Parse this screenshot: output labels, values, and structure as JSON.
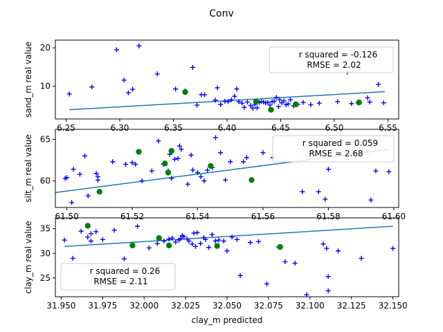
{
  "figure": {
    "title": "Conv"
  },
  "colors": {
    "marker_blue": "#0000ff",
    "marker_green": "#008000",
    "fit_line": "#1f77b4"
  },
  "chart_data": [
    {
      "type": "scatter",
      "ylabel": "sand_m real value",
      "xlabel": "",
      "xlim": [
        6.24,
        6.56
      ],
      "ylim": [
        1.5,
        22
      ],
      "xticks": [
        "6.25",
        "6.30",
        "6.35",
        "6.40",
        "6.45",
        "6.50",
        "6.55"
      ],
      "yticks": [
        "10",
        "20"
      ],
      "annotation": {
        "line1": "r squared = -0.126",
        "line2": "RMSE = 2.02"
      },
      "fit_line": {
        "x": [
          6.253,
          6.547
        ],
        "y": [
          3.9,
          8.6
        ]
      },
      "series_test": {
        "marker": "plus",
        "x": [
          6.253,
          6.274,
          6.297,
          6.318,
          6.308,
          6.312,
          6.304,
          6.335,
          6.352,
          6.361,
          6.368,
          6.372,
          6.376,
          6.379,
          6.389,
          6.391,
          6.394,
          6.398,
          6.401,
          6.404,
          6.407,
          6.409,
          6.411,
          6.414,
          6.416,
          6.419,
          6.422,
          6.424,
          6.426,
          6.428,
          6.43,
          6.432,
          6.434,
          6.436,
          6.438,
          6.44,
          6.442,
          6.444,
          6.446,
          6.448,
          6.449,
          6.451,
          6.453,
          6.455,
          6.457,
          6.459,
          6.462,
          6.466,
          6.471,
          6.478,
          6.486,
          6.503,
          6.512,
          6.516,
          6.522,
          6.533,
          6.531,
          6.541,
          6.546
        ],
        "y": [
          8.0,
          9.8,
          19.5,
          20.5,
          8.3,
          9.2,
          11.6,
          13.2,
          9.3,
          8.8,
          14.9,
          5.1,
          7.8,
          7.8,
          6.4,
          9.6,
          5.3,
          6.1,
          6.0,
          6.5,
          7.4,
          9.3,
          6.0,
          5.6,
          4.5,
          5.9,
          5.0,
          4.3,
          5.3,
          4.4,
          5.8,
          6.0,
          5.9,
          5.7,
          5.8,
          5.1,
          6.0,
          6.1,
          7.1,
          4.7,
          6.5,
          5.7,
          6.2,
          5.2,
          5.4,
          6.5,
          4.9,
          5.3,
          5.8,
          5.2,
          5.6,
          6.0,
          13.7,
          5.5,
          5.7,
          5.9,
          7.0,
          10.5,
          5.7
        ]
      },
      "series_train": {
        "marker": "circle",
        "x": [
          6.361,
          6.427,
          6.441,
          6.464,
          6.523
        ],
        "y": [
          8.5,
          6.0,
          3.9,
          5.3,
          5.8
        ]
      }
    },
    {
      "type": "scatter",
      "ylabel": "silt_m real value",
      "xlabel": "",
      "xlim": [
        61.4965,
        61.6015
      ],
      "ylim": [
        56.8,
        66.2
      ],
      "xticks": [
        "61.50",
        "61.52",
        "61.54",
        "61.56",
        "61.58",
        "61.60"
      ],
      "yticks": [
        "60",
        "65"
      ],
      "annotation": {
        "line1": "r squared = 0.059",
        "line2": "RMSE = 2.68"
      },
      "fit_line": {
        "x": [
          61.4965,
          61.5985
        ],
        "y": [
          58.6,
          63.8
        ]
      },
      "series_test": {
        "marker": "plus",
        "x": [
          61.4995,
          61.5,
          61.502,
          61.504,
          61.5015,
          61.5065,
          61.5055,
          61.509,
          61.5095,
          61.5095,
          61.514,
          61.518,
          61.52,
          61.521,
          61.523,
          61.526,
          61.528,
          61.5295,
          61.531,
          61.5315,
          61.532,
          61.533,
          61.534,
          61.5345,
          61.535,
          61.537,
          61.538,
          61.5385,
          61.54,
          61.541,
          61.542,
          61.543,
          61.5445,
          61.5455,
          61.547,
          61.5485,
          61.55,
          61.554,
          61.555,
          61.56,
          61.563,
          61.572,
          61.577,
          61.579,
          61.58,
          61.593,
          61.5945,
          61.5985
        ],
        "y": [
          60.3,
          60.4,
          61.4,
          60.8,
          57.4,
          58.2,
          63.0,
          60.9,
          60.5,
          60.1,
          62.3,
          62.0,
          62.2,
          62.0,
          60.0,
          61.2,
          64.8,
          62.0,
          61.2,
          63.2,
          60.3,
          62.6,
          62.7,
          64.2,
          63.8,
          59.6,
          63.1,
          61.3,
          61.0,
          60.5,
          60.0,
          61.3,
          61.6,
          65.2,
          63.4,
          60.1,
          62.3,
          62.3,
          62.8,
          63.4,
          62.8,
          58.7,
          58.7,
          57.8,
          61.4,
          57.7,
          61.2,
          61.1
        ]
      },
      "series_train": {
        "marker": "circle",
        "x": [
          61.51,
          61.522,
          61.53,
          61.531,
          61.532,
          61.544,
          61.5565
        ],
        "y": [
          58.7,
          63.5,
          62.1,
          61.0,
          63.6,
          61.8,
          60.1
        ]
      }
    },
    {
      "type": "scatter",
      "ylabel": "clay_m real value",
      "xlabel": "clay_m predicted",
      "xlim": [
        31.9465,
        32.1535
      ],
      "ylim": [
        21.2,
        37.2
      ],
      "xticks": [
        "31.950",
        "31.975",
        "32.000",
        "32.025",
        "32.050",
        "32.075",
        "32.100",
        "32.125",
        "32.150"
      ],
      "yticks": [
        "25",
        "30",
        "35"
      ],
      "annotation": {
        "line1": "r squared = 0.26",
        "line2": "RMSE = 2.11"
      },
      "fit_line": {
        "x": [
          31.952,
          32.15
        ],
        "y": [
          31.4,
          35.5
        ]
      },
      "series_test": {
        "marker": "plus",
        "x": [
          31.952,
          31.957,
          31.962,
          31.966,
          31.968,
          31.968,
          31.971,
          31.975,
          31.982,
          31.988,
          31.996,
          32.003,
          32.008,
          32.012,
          32.015,
          32.017,
          32.019,
          32.021,
          32.022,
          32.023,
          32.024,
          32.026,
          32.027,
          32.029,
          32.03,
          32.031,
          32.032,
          32.034,
          32.036,
          32.037,
          32.039,
          32.041,
          32.043,
          32.045,
          32.048,
          32.05,
          32.053,
          32.056,
          32.058,
          32.064,
          32.069,
          32.074,
          32.081,
          32.085,
          32.091,
          32.098,
          32.108,
          32.11,
          32.111,
          32.111,
          32.117,
          32.131,
          32.15
        ],
        "y": [
          32.7,
          29.0,
          34.5,
          33.3,
          32.5,
          34.0,
          34.4,
          32.8,
          34.7,
          28.9,
          35.5,
          31.1,
          32.0,
          32.5,
          32.9,
          33.1,
          32.3,
          32.7,
          33.0,
          33.6,
          33.4,
          32.9,
          32.5,
          31.9,
          34.1,
          31.4,
          34.2,
          32.0,
          33.2,
          32.8,
          31.2,
          33.8,
          32.5,
          32.7,
          32.5,
          30.5,
          33.3,
          32.8,
          25.5,
          32.2,
          32.4,
          23.8,
          31.3,
          28.3,
          28.0,
          21.6,
          31.9,
          31.0,
          22.4,
          25.3,
          30.5,
          29.0,
          31.0
        ]
      },
      "series_train": {
        "marker": "circle",
        "x": [
          31.966,
          31.993,
          32.009,
          32.015,
          32.044,
          32.082
        ],
        "y": [
          35.6,
          31.6,
          33.1,
          31.6,
          31.5,
          31.3
        ]
      }
    }
  ]
}
